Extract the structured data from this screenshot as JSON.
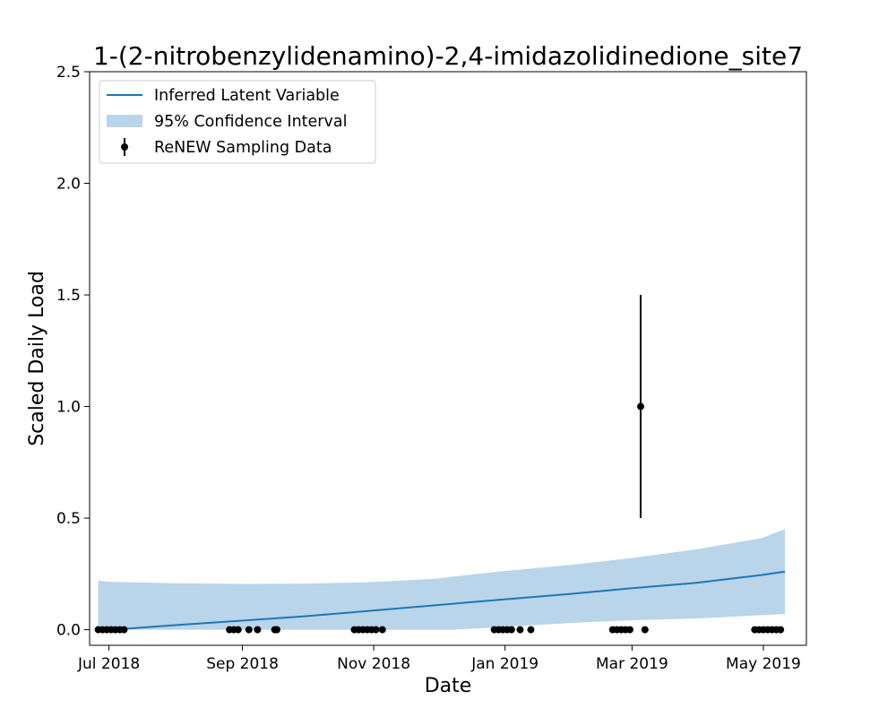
{
  "chart_data": {
    "type": "line",
    "title": "1-(2-nitrobenzylidenamino)-2,4-imidazolidinedione_site7",
    "xlabel": "Date",
    "ylabel": "Scaled Daily Load",
    "xlim": [
      "2018-06-22",
      "2019-05-21"
    ],
    "ylim": [
      -0.07,
      2.5
    ],
    "x_ticks": [
      {
        "date": "2018-07-01",
        "label": "Jul 2018"
      },
      {
        "date": "2018-09-01",
        "label": "Sep 2018"
      },
      {
        "date": "2018-11-01",
        "label": "Nov 2018"
      },
      {
        "date": "2019-01-01",
        "label": "Jan 2019"
      },
      {
        "date": "2019-03-01",
        "label": "Mar 2019"
      },
      {
        "date": "2019-05-01",
        "label": "May 2019"
      }
    ],
    "y_ticks": [
      {
        "value": 0.0,
        "label": "0.0"
      },
      {
        "value": 0.5,
        "label": "0.5"
      },
      {
        "value": 1.0,
        "label": "1.0"
      },
      {
        "value": 1.5,
        "label": "1.5"
      },
      {
        "value": 2.0,
        "label": "2.0"
      },
      {
        "value": 2.5,
        "label": "2.5"
      }
    ],
    "grid": false,
    "legend_position": "top-left",
    "series": [
      {
        "name": "Inferred Latent Variable",
        "kind": "line",
        "color": "#1f77b4",
        "x": [
          "2018-06-26",
          "2018-07-31",
          "2018-08-31",
          "2018-09-30",
          "2018-10-31",
          "2018-11-30",
          "2018-12-31",
          "2019-01-31",
          "2019-02-28",
          "2019-03-31",
          "2019-04-30",
          "2019-05-11"
        ],
        "y": [
          -0.005,
          0.02,
          0.04,
          0.06,
          0.085,
          0.11,
          0.135,
          0.16,
          0.185,
          0.21,
          0.245,
          0.26
        ]
      },
      {
        "name": "95% Confidence Interval",
        "kind": "band",
        "color": "#bad4e9",
        "x": [
          "2018-06-26",
          "2018-06-30",
          "2018-07-31",
          "2018-08-31",
          "2018-09-30",
          "2018-10-31",
          "2018-11-30",
          "2018-12-08",
          "2018-12-31",
          "2019-01-31",
          "2019-02-28",
          "2019-03-31",
          "2019-04-30",
          "2019-05-11"
        ],
        "lower": [
          0.0,
          0.0,
          0.0,
          0.0,
          0.0,
          0.0,
          0.0,
          0.0,
          0.012,
          0.03,
          0.042,
          0.05,
          0.065,
          0.07
        ],
        "upper": [
          0.22,
          0.215,
          0.208,
          0.205,
          0.206,
          0.213,
          0.228,
          0.238,
          0.262,
          0.29,
          0.32,
          0.36,
          0.41,
          0.45
        ]
      },
      {
        "name": "ReNEW Sampling Data",
        "kind": "scatter",
        "color": "#000000",
        "x": [
          "2018-06-26",
          "2018-06-28",
          "2018-06-30",
          "2018-07-02",
          "2018-07-04",
          "2018-07-06",
          "2018-07-08",
          "2018-08-26",
          "2018-08-28",
          "2018-08-30",
          "2018-09-04",
          "2018-09-08",
          "2018-09-16",
          "2018-09-17",
          "2018-10-23",
          "2018-10-25",
          "2018-10-27",
          "2018-10-29",
          "2018-10-31",
          "2018-11-02",
          "2018-11-05",
          "2018-12-27",
          "2018-12-29",
          "2018-12-31",
          "2019-01-02",
          "2019-01-04",
          "2019-01-08",
          "2019-01-13",
          "2019-02-20",
          "2019-02-22",
          "2019-02-24",
          "2019-02-26",
          "2019-02-28",
          "2019-03-07",
          "2019-03-05",
          "2019-04-27",
          "2019-04-29",
          "2019-05-01",
          "2019-05-03",
          "2019-05-05",
          "2019-05-07",
          "2019-05-09"
        ],
        "y": [
          0,
          0,
          0,
          0,
          0,
          0,
          0,
          0,
          0,
          0,
          0,
          0,
          0,
          0,
          0,
          0,
          0,
          0,
          0,
          0,
          0,
          0,
          0,
          0,
          0,
          0,
          0,
          0,
          0,
          0,
          0,
          0,
          0,
          0,
          1.0,
          0,
          0,
          0,
          0,
          0,
          0,
          0
        ],
        "y_low": [
          0,
          0,
          0,
          0,
          0,
          0,
          0,
          0,
          0,
          0,
          0,
          0,
          0,
          0,
          0,
          0,
          0,
          0,
          0,
          0,
          0,
          0,
          0,
          0,
          0,
          0,
          0,
          0,
          0,
          0,
          0,
          0,
          0,
          0,
          0.5,
          0,
          0,
          0,
          0,
          0,
          0,
          0
        ],
        "y_high": [
          0,
          0,
          0,
          0,
          0,
          0,
          0,
          0,
          0,
          0,
          0,
          0,
          0,
          0,
          0,
          0,
          0,
          0,
          0,
          0,
          0,
          0,
          0,
          0,
          0,
          0,
          0,
          0,
          0,
          0,
          0,
          0,
          0,
          0,
          1.5,
          0,
          0,
          0,
          0,
          0,
          0,
          0
        ]
      }
    ]
  }
}
